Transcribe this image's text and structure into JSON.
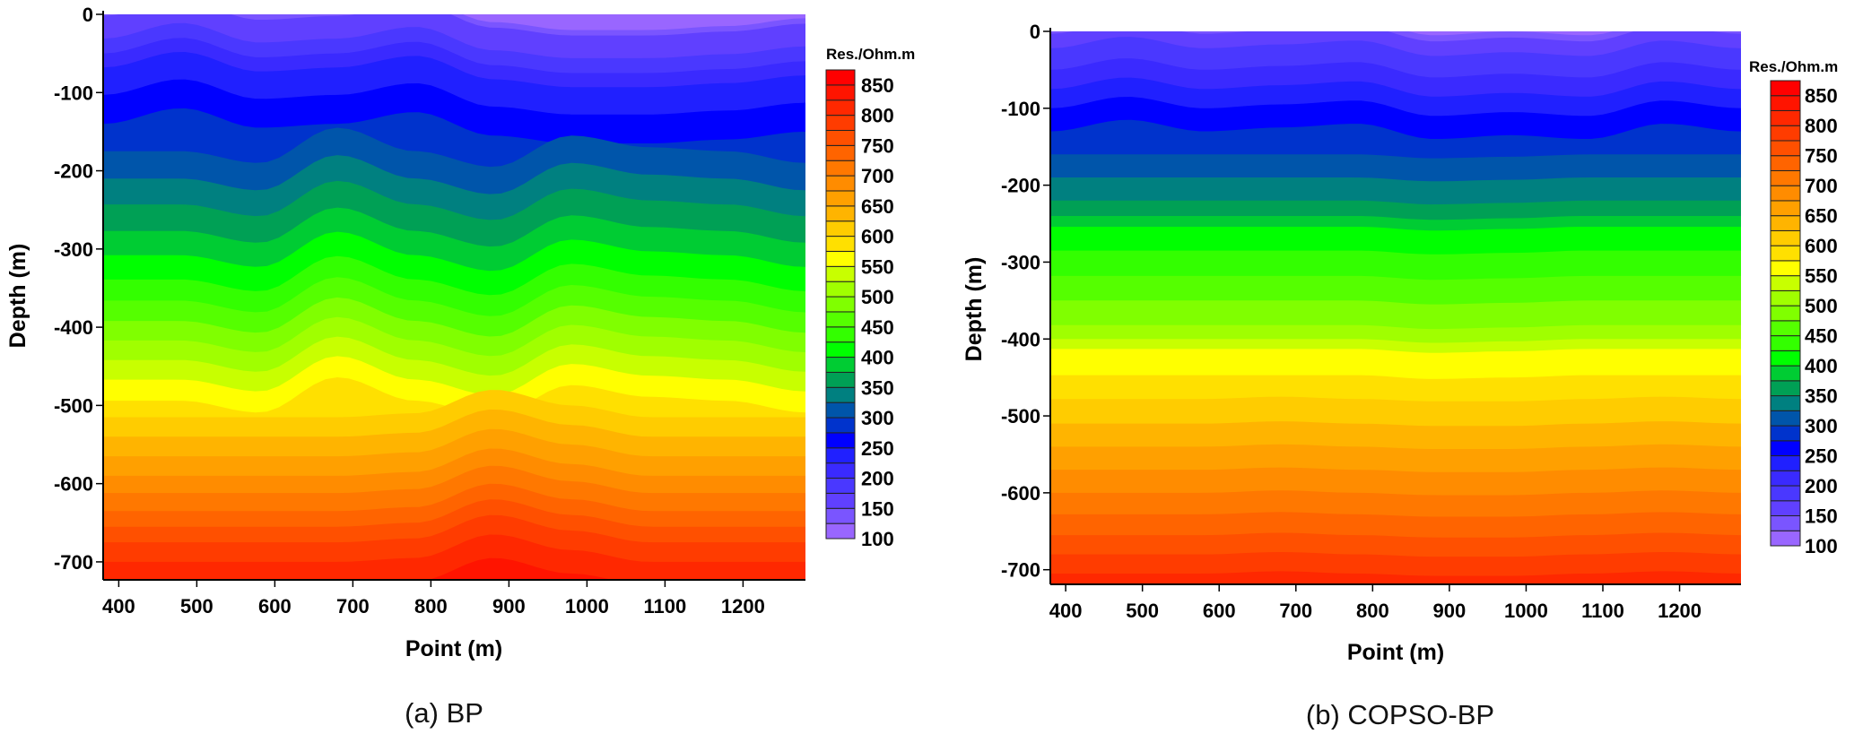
{
  "chart_data": [
    {
      "type": "heatmap",
      "subtype": "filled-contour",
      "caption": "(a) BP",
      "xlabel": "Point (m)",
      "ylabel": "Depth (m)",
      "xlim": [
        380,
        1280
      ],
      "ylim": [
        -723,
        0
      ],
      "xticks": [
        "400",
        "500",
        "600",
        "700",
        "800",
        "900",
        "1000",
        "1100",
        "1200"
      ],
      "yticks": [
        "0",
        "-100",
        "-200",
        "-300",
        "-400",
        "-500",
        "-600",
        "-700"
      ],
      "colorbar": {
        "title": "Res./Ohm.m",
        "labels": [
          "100",
          "150",
          "200",
          "250",
          "300",
          "350",
          "400",
          "450",
          "500",
          "550",
          "600",
          "650",
          "700",
          "750",
          "800",
          "850"
        ]
      },
      "contour_levels": [
        125,
        150,
        175,
        200,
        225,
        250,
        275,
        300,
        325,
        350,
        375,
        400,
        425,
        450,
        475,
        500,
        525,
        550,
        575,
        600,
        625,
        650,
        675,
        700,
        725,
        750,
        775,
        800,
        825,
        850
      ],
      "contour_mean_depths": [
        5,
        -2,
        -31,
        -50,
        -68,
        -103,
        -140,
        -175,
        -210,
        -243,
        -277,
        -308,
        -339,
        -366,
        -392,
        -417,
        -442,
        -467,
        -494,
        -515,
        -540,
        -565,
        -590,
        -612,
        -635,
        -655,
        -675,
        -700,
        -730,
        -760
      ],
      "undulation_x": [
        380,
        480,
        580,
        680,
        780,
        880,
        980,
        1080,
        1180,
        1280
      ],
      "undulation_shallow": [
        0,
        20,
        -5,
        0,
        15,
        -15,
        -25,
        -25,
        -20,
        -10
      ],
      "undulation_mid": [
        0,
        0,
        -15,
        30,
        0,
        -20,
        20,
        5,
        0,
        -15
      ],
      "undulation_deep": [
        0,
        0,
        0,
        0,
        5,
        35,
        15,
        0,
        0,
        0
      ]
    },
    {
      "type": "heatmap",
      "subtype": "filled-contour",
      "caption": "(b) COPSO-BP",
      "xlabel": "Point (m)",
      "ylabel": "Depth (m)",
      "xlim": [
        380,
        1280
      ],
      "ylim": [
        -719,
        0
      ],
      "xticks": [
        "400",
        "500",
        "600",
        "700",
        "800",
        "900",
        "1000",
        "1100",
        "1200"
      ],
      "yticks": [
        "0",
        "-100",
        "-200",
        "-300",
        "-400",
        "-500",
        "-600",
        "-700"
      ],
      "colorbar": {
        "title": "Res./Ohm.m",
        "labels": [
          "100",
          "150",
          "200",
          "250",
          "300",
          "350",
          "400",
          "450",
          "500",
          "550",
          "600",
          "650",
          "700",
          "750",
          "800",
          "850"
        ]
      },
      "contour_levels": [
        125,
        150,
        175,
        200,
        225,
        250,
        275,
        300,
        325,
        350,
        375,
        400,
        425,
        450,
        475,
        500,
        525,
        550,
        575,
        600,
        625,
        650,
        675,
        700,
        725,
        750,
        775,
        800,
        825,
        850
      ],
      "contour_mean_depths": [
        5,
        -3,
        -22,
        -50,
        -75,
        -100,
        -130,
        -160,
        -190,
        -220,
        -240,
        -254,
        -285,
        -318,
        -350,
        -382,
        -400,
        -413,
        -447,
        -478,
        -510,
        -540,
        -570,
        -600,
        -628,
        -655,
        -680,
        -705,
        -740,
        -780
      ],
      "undulation_x": [
        380,
        480,
        580,
        680,
        780,
        880,
        980,
        1080,
        1180,
        1280
      ],
      "undulation_shallow": [
        0,
        15,
        0,
        5,
        10,
        -10,
        -5,
        -10,
        10,
        0
      ],
      "undulation_mid": [
        0,
        0,
        0,
        0,
        0,
        -5,
        -3,
        0,
        0,
        0
      ],
      "undulation_deep": [
        0,
        0,
        0,
        3,
        0,
        -3,
        -3,
        0,
        3,
        0
      ]
    }
  ],
  "band_colors": [
    "#9966ff",
    "#7a55ff",
    "#6040ff",
    "#4a38ff",
    "#3a2aff",
    "#2020ff",
    "#0000ff",
    "#0033cc",
    "#0055aa",
    "#008080",
    "#00a055",
    "#00cc33",
    "#00ff00",
    "#33ff00",
    "#55ff00",
    "#80ff00",
    "#a0ff00",
    "#c8ff00",
    "#ffff00",
    "#ffe000",
    "#ffcc00",
    "#ffb400",
    "#ffa000",
    "#ff8c00",
    "#ff7800",
    "#ff6400",
    "#ff5000",
    "#ff3c00",
    "#ff2800",
    "#ff1400",
    "#ff0000"
  ]
}
